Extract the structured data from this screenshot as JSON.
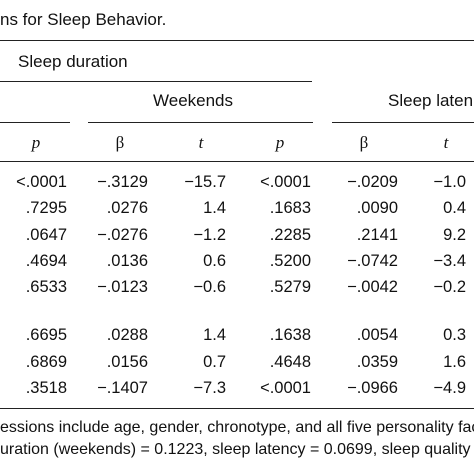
{
  "caption": "ns for Sleep Behavior.",
  "group_title": "Sleep duration",
  "subgroups": {
    "weekends": "Weekends",
    "sleep_latency": "Sleep laten"
  },
  "headers": [
    "p",
    "β",
    "t",
    "p",
    "β",
    "t"
  ],
  "rows": [
    [
      "<.0001",
      "−.3129",
      "−15.7",
      "<.0001",
      "−.0209",
      "−1.0"
    ],
    [
      ".7295",
      ".0276",
      "1.4",
      ".1683",
      ".0090",
      "0.4"
    ],
    [
      ".0647",
      "−.0276",
      "−1.2",
      ".2285",
      ".2141",
      "9.2"
    ],
    [
      ".4694",
      ".0136",
      "0.6",
      ".5200",
      "−.0742",
      "−3.4"
    ],
    [
      ".6533",
      "−.0123",
      "−0.6",
      ".5279",
      "−.0042",
      "−0.2"
    ],
    [
      ".6695",
      ".0288",
      "1.4",
      ".1638",
      ".0054",
      "0.3"
    ],
    [
      ".6869",
      ".0156",
      "0.7",
      ".4648",
      ".0359",
      "1.6"
    ],
    [
      ".3518",
      "−.1407",
      "−7.3",
      "<.0001",
      "−.0966",
      "−4.9"
    ]
  ],
  "notes": [
    "essions include age, gender, chronotype, and all five personality fac",
    "uration (weekends) = 0.1223, sleep latency = 0.0699, sleep quality"
  ]
}
